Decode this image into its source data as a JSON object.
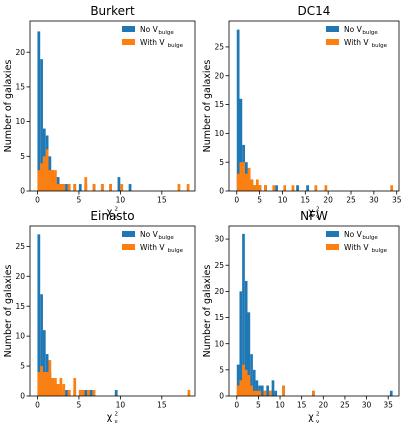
{
  "colors": {
    "no_bulge": "#1f77b4",
    "with_bulge": "#ff7f0e"
  },
  "chart_data": [
    {
      "type": "histogram",
      "title": "Burkert",
      "xlabel_base": "χ",
      "xlabel_sup": "2",
      "xlabel_sub": "ν",
      "ylabel": "Number of galaxies",
      "xlim": [
        -0.9,
        19
      ],
      "ylim": [
        0,
        24.5
      ],
      "xticks": [
        0,
        5,
        10,
        15
      ],
      "yticks": [
        0,
        5,
        10,
        15,
        20
      ],
      "bin_width": 0.33,
      "legend_position": "upper right",
      "series": [
        {
          "name": "No V",
          "name_sub": "bulge",
          "bins": [
            [
              0.0,
              23
            ],
            [
              0.33,
              19
            ],
            [
              0.66,
              9
            ],
            [
              1.0,
              8
            ],
            [
              1.33,
              5
            ],
            [
              1.66,
              3
            ],
            [
              2.0,
              2
            ],
            [
              2.33,
              2
            ],
            [
              2.66,
              1
            ],
            [
              3.0,
              1
            ],
            [
              3.33,
              1
            ],
            [
              3.66,
              1
            ],
            [
              4.33,
              1
            ],
            [
              5.0,
              1
            ],
            [
              5.66,
              1
            ],
            [
              6.66,
              1
            ],
            [
              7.66,
              1
            ],
            [
              8.66,
              1
            ],
            [
              9.66,
              2
            ],
            [
              11.0,
              1
            ]
          ]
        },
        {
          "name": "With V",
          "name_sub": "bulge",
          "bins": [
            [
              0.0,
              3
            ],
            [
              0.33,
              4
            ],
            [
              0.66,
              5
            ],
            [
              1.0,
              6
            ],
            [
              1.33,
              3
            ],
            [
              1.66,
              3
            ],
            [
              2.0,
              3
            ],
            [
              2.33,
              1
            ],
            [
              2.66,
              1
            ],
            [
              3.0,
              1
            ],
            [
              3.66,
              1
            ],
            [
              4.33,
              1
            ],
            [
              5.66,
              2
            ],
            [
              6.66,
              1
            ],
            [
              7.66,
              1
            ],
            [
              8.66,
              1
            ],
            [
              10.0,
              1
            ],
            [
              16.9,
              1
            ],
            [
              18.0,
              1
            ]
          ]
        }
      ]
    },
    {
      "type": "histogram",
      "title": "DC14",
      "xlabel_base": "χ",
      "xlabel_sup": "2",
      "xlabel_sub": "ν",
      "ylabel": "Number of galaxies",
      "xlim": [
        -1.7,
        35.5
      ],
      "ylim": [
        0,
        29.5
      ],
      "xticks": [
        0,
        5,
        10,
        15,
        20,
        25,
        30,
        35
      ],
      "yticks": [
        0,
        5,
        10,
        15,
        20,
        25
      ],
      "bin_width": 0.6,
      "legend_position": "upper right",
      "series": [
        {
          "name": "No V",
          "name_sub": "bulge",
          "bins": [
            [
              0.0,
              28
            ],
            [
              0.6,
              16
            ],
            [
              1.2,
              8
            ],
            [
              1.8,
              5
            ],
            [
              2.4,
              4
            ],
            [
              3.0,
              2
            ],
            [
              3.6,
              1
            ],
            [
              4.2,
              1
            ],
            [
              4.8,
              1
            ],
            [
              6.0,
              1
            ],
            [
              8.4,
              1
            ],
            [
              13.0,
              1
            ],
            [
              15.2,
              1
            ]
          ]
        },
        {
          "name": "With V",
          "name_sub": "bulge",
          "bins": [
            [
              0.0,
              3
            ],
            [
              0.6,
              5
            ],
            [
              1.2,
              5
            ],
            [
              1.8,
              3
            ],
            [
              2.4,
              4
            ],
            [
              3.0,
              2
            ],
            [
              3.6,
              1
            ],
            [
              4.2,
              2
            ],
            [
              4.8,
              1
            ],
            [
              6.0,
              1
            ],
            [
              7.8,
              1
            ],
            [
              10.2,
              1
            ],
            [
              12.0,
              1
            ],
            [
              17.0,
              1
            ],
            [
              19.2,
              1
            ],
            [
              33.6,
              1
            ]
          ]
        }
      ]
    },
    {
      "type": "histogram",
      "title": "Einasto",
      "xlabel_base": "χ",
      "xlabel_sup": "2",
      "xlabel_sub": "ν",
      "ylabel": "Number of galaxies",
      "xlim": [
        -0.9,
        19
      ],
      "ylim": [
        0,
        28.4
      ],
      "xticks": [
        0,
        5,
        10,
        15
      ],
      "yticks": [
        0,
        5,
        10,
        15,
        20,
        25
      ],
      "bin_width": 0.33,
      "legend_position": "upper right",
      "series": [
        {
          "name": "No V",
          "name_sub": "bulge",
          "bins": [
            [
              0.0,
              27
            ],
            [
              0.33,
              17
            ],
            [
              0.66,
              11
            ],
            [
              1.0,
              7
            ],
            [
              1.33,
              4
            ],
            [
              1.66,
              3
            ],
            [
              2.0,
              2
            ],
            [
              2.33,
              2
            ],
            [
              2.66,
              1
            ],
            [
              3.33,
              1
            ],
            [
              3.66,
              1
            ],
            [
              4.33,
              1
            ],
            [
              5.0,
              1
            ],
            [
              5.66,
              1
            ],
            [
              6.0,
              1
            ],
            [
              6.33,
              1
            ],
            [
              9.33,
              1
            ]
          ]
        },
        {
          "name": "With V",
          "name_sub": "bulge",
          "bins": [
            [
              0.0,
              4
            ],
            [
              0.33,
              5
            ],
            [
              0.66,
              4
            ],
            [
              1.0,
              4
            ],
            [
              1.33,
              6
            ],
            [
              1.66,
              3
            ],
            [
              2.0,
              3
            ],
            [
              2.33,
              2
            ],
            [
              2.66,
              3
            ],
            [
              3.0,
              2
            ],
            [
              3.66,
              1
            ],
            [
              4.33,
              3
            ],
            [
              5.0,
              1
            ],
            [
              5.33,
              1
            ],
            [
              6.0,
              1
            ],
            [
              6.66,
              1
            ],
            [
              18.1,
              1
            ]
          ]
        }
      ]
    },
    {
      "type": "histogram",
      "title": "NFW",
      "xlabel_base": "χ",
      "xlabel_sup": "2",
      "xlabel_sub": "ν",
      "ylabel": "Number of galaxies",
      "xlim": [
        -1.8,
        37.5
      ],
      "ylim": [
        0,
        32.5
      ],
      "xticks": [
        0,
        5,
        10,
        15,
        20,
        25,
        30,
        35
      ],
      "yticks": [
        0,
        5,
        10,
        15,
        20,
        25,
        30
      ],
      "bin_width": 0.62,
      "legend_position": "upper right",
      "series": [
        {
          "name": "No V",
          "name_sub": "bulge",
          "bins": [
            [
              0.0,
              6
            ],
            [
              0.62,
              20
            ],
            [
              1.24,
              31
            ],
            [
              1.86,
              22
            ],
            [
              2.48,
              16
            ],
            [
              3.1,
              8
            ],
            [
              3.72,
              5
            ],
            [
              4.34,
              3
            ],
            [
              4.96,
              2
            ],
            [
              5.58,
              2
            ],
            [
              6.2,
              1
            ],
            [
              6.82,
              2
            ],
            [
              7.44,
              1
            ],
            [
              8.06,
              3
            ],
            [
              8.68,
              1
            ],
            [
              10.5,
              2
            ],
            [
              17.4,
              1
            ],
            [
              35.4,
              1
            ]
          ]
        },
        {
          "name": "With V",
          "name_sub": "bulge",
          "bins": [
            [
              0.0,
              2
            ],
            [
              0.62,
              3
            ],
            [
              1.24,
              6
            ],
            [
              1.86,
              5
            ],
            [
              2.48,
              4
            ],
            [
              3.1,
              2
            ],
            [
              3.72,
              1
            ],
            [
              4.34,
              1
            ],
            [
              4.96,
              1
            ],
            [
              6.2,
              1
            ],
            [
              7.44,
              1
            ],
            [
              10.5,
              2
            ],
            [
              17.4,
              1
            ]
          ]
        }
      ]
    }
  ]
}
